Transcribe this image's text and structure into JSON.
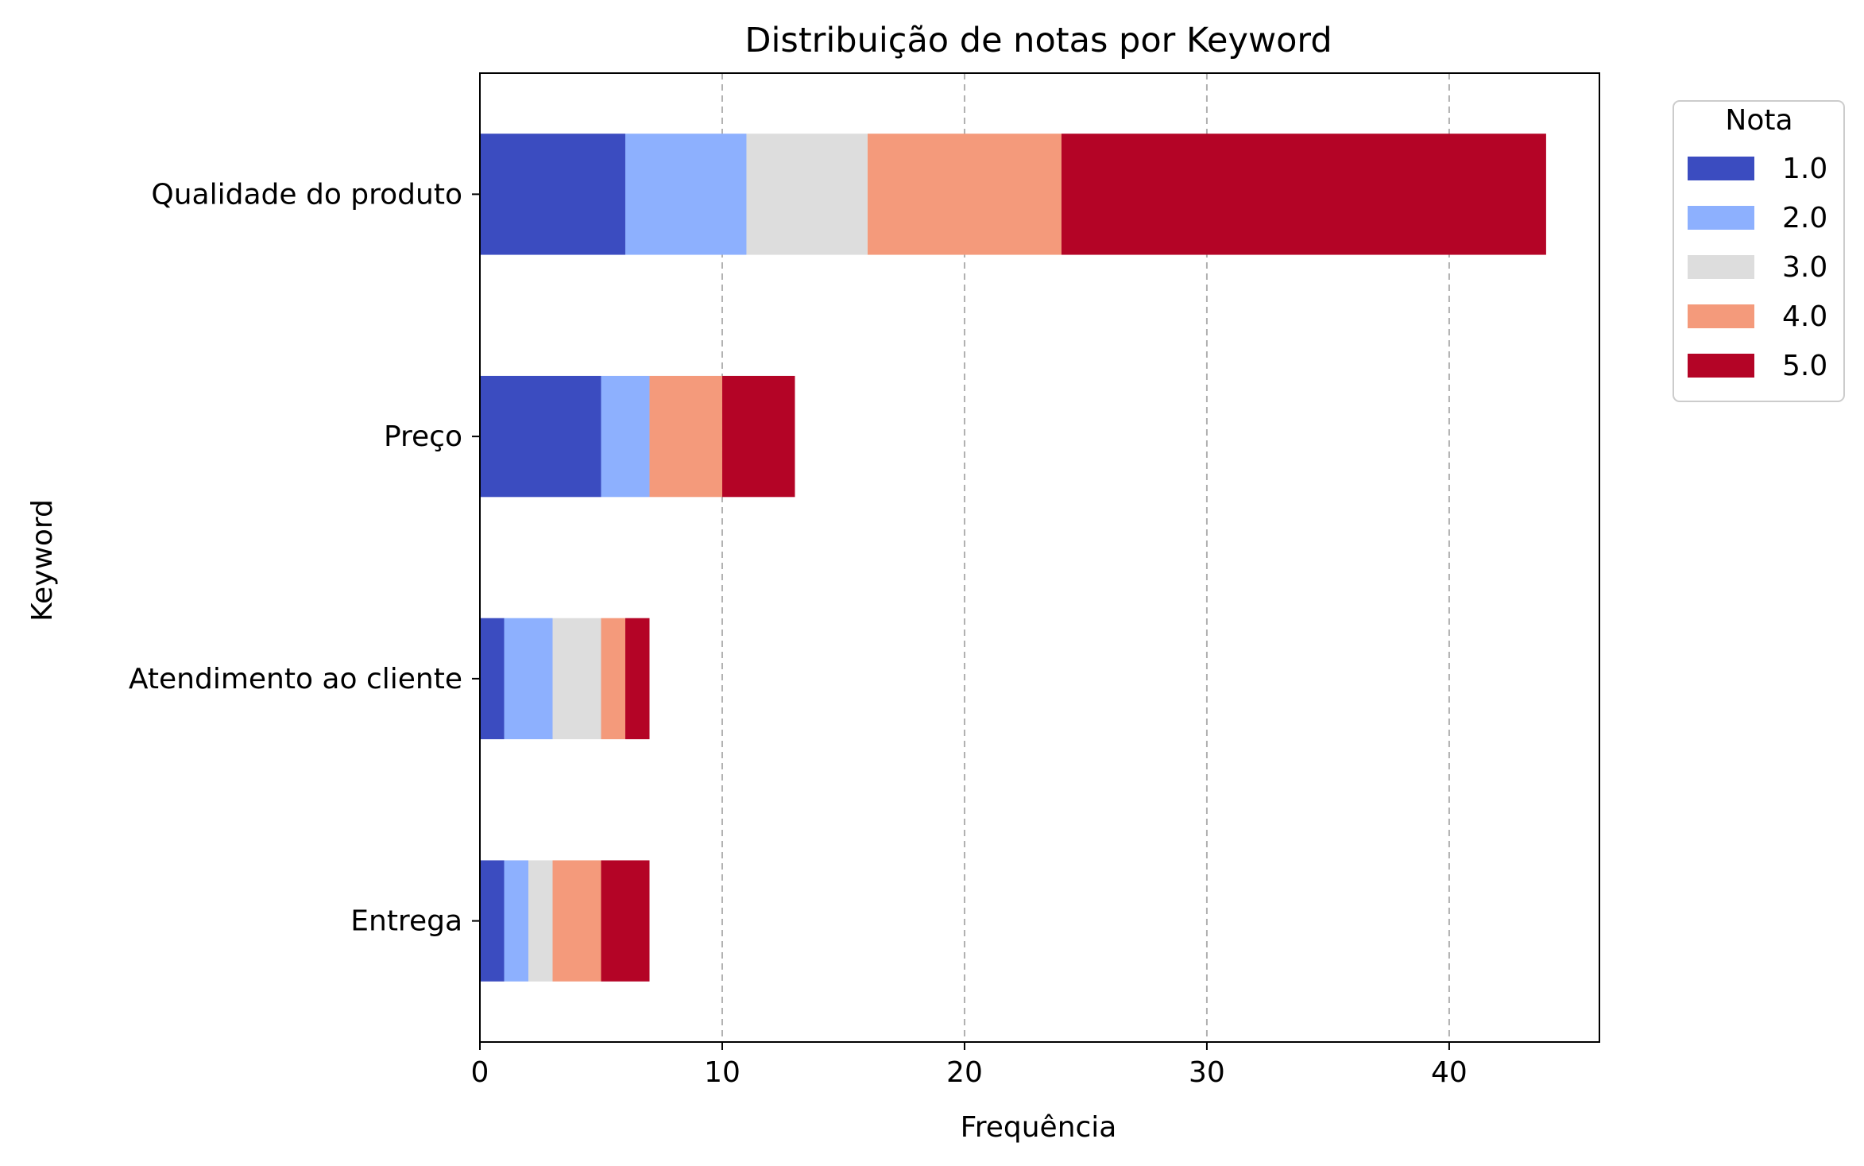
{
  "chart_data": {
    "type": "bar",
    "orientation": "horizontal",
    "stacked": true,
    "title": "Distribuição de notas por Keyword",
    "xlabel": "Frequência",
    "ylabel": "Keyword",
    "categories": [
      "Qualidade do produto",
      "Preço",
      "Atendimento ao cliente",
      "Entrega"
    ],
    "xlim": [
      0,
      46.2
    ],
    "xticks": [
      0,
      10,
      20,
      30,
      40
    ],
    "grid": "x-axis dashed",
    "legend": {
      "title": "Nota",
      "placement": "outside-top-right"
    },
    "series": [
      {
        "name": "1.0",
        "color": "#3b4cc0",
        "values": [
          6,
          5,
          1,
          1
        ]
      },
      {
        "name": "2.0",
        "color": "#8db0fe",
        "values": [
          5,
          2,
          2,
          1
        ]
      },
      {
        "name": "3.0",
        "color": "#dddddd",
        "values": [
          5,
          0,
          2,
          1
        ]
      },
      {
        "name": "4.0",
        "color": "#f49a7b",
        "values": [
          8,
          3,
          1,
          2
        ]
      },
      {
        "name": "5.0",
        "color": "#b40426",
        "values": [
          20,
          3,
          1,
          2
        ]
      }
    ]
  }
}
